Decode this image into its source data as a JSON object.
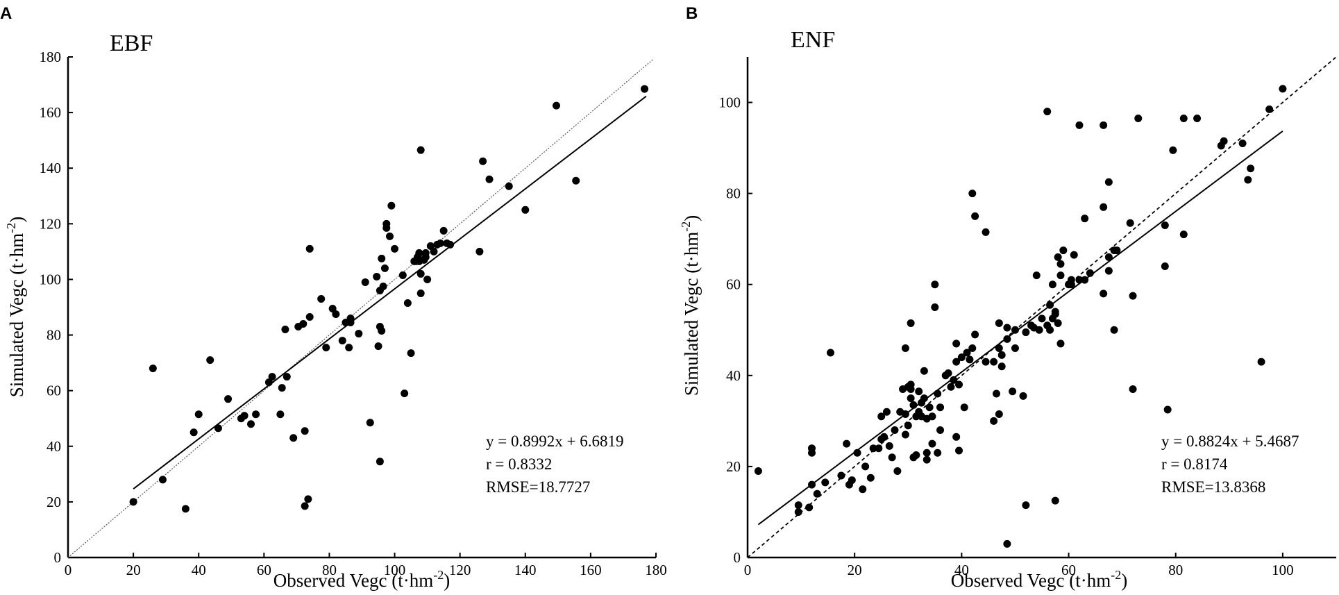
{
  "chart_data": [
    {
      "type": "scatter",
      "panel_label": "A",
      "title": "EBF",
      "xlabel": "Observed Vegc (t·hm",
      "ylabel": "Simulated Vegc (t·hm",
      "unit_exponent": "-2",
      "unit_close": ")",
      "xlim": [
        0,
        180
      ],
      "ylim": [
        0,
        180
      ],
      "xticks": [
        0,
        20,
        40,
        60,
        80,
        100,
        120,
        140,
        160,
        180
      ],
      "yticks": [
        0,
        20,
        40,
        60,
        80,
        100,
        120,
        140,
        160,
        180
      ],
      "equation": "y = 0.8992x + 6.6819",
      "r_text": "r = 0.8332",
      "rmse_text": "RMSE=18.7727",
      "fit": {
        "slope": 0.8992,
        "intercept": 6.6819,
        "x_range": [
          20,
          177
        ]
      },
      "one_to_one": {
        "x_range": [
          0,
          179
        ]
      },
      "points": [
        [
          20,
          20
        ],
        [
          26,
          68
        ],
        [
          29,
          28
        ],
        [
          36,
          17.5
        ],
        [
          38.5,
          45
        ],
        [
          40,
          51.5
        ],
        [
          43.5,
          71
        ],
        [
          46,
          46.5
        ],
        [
          49,
          57
        ],
        [
          53,
          50
        ],
        [
          54,
          51
        ],
        [
          56,
          48
        ],
        [
          57.5,
          51.5
        ],
        [
          61.5,
          63
        ],
        [
          62.5,
          65
        ],
        [
          65,
          51.5
        ],
        [
          65.5,
          61
        ],
        [
          66.5,
          82
        ],
        [
          67,
          65
        ],
        [
          69,
          43
        ],
        [
          70.5,
          83
        ],
        [
          72,
          84
        ],
        [
          72.5,
          18.5
        ],
        [
          72.5,
          45.5
        ],
        [
          73.5,
          21
        ],
        [
          74,
          86.5
        ],
        [
          74,
          111
        ],
        [
          77.5,
          93
        ],
        [
          79,
          75.5
        ],
        [
          81,
          89.5
        ],
        [
          82,
          87.5
        ],
        [
          84,
          78
        ],
        [
          85,
          84.5
        ],
        [
          86,
          75.5
        ],
        [
          86.5,
          84.5
        ],
        [
          86.5,
          86
        ],
        [
          89,
          80.5
        ],
        [
          91,
          99
        ],
        [
          92.5,
          48.5
        ],
        [
          94.5,
          101
        ],
        [
          95,
          76
        ],
        [
          95.5,
          34.5
        ],
        [
          95.5,
          83
        ],
        [
          95.5,
          96
        ],
        [
          96,
          107.5
        ],
        [
          96,
          81.5
        ],
        [
          96.5,
          97.5
        ],
        [
          97,
          104
        ],
        [
          97.5,
          120
        ],
        [
          97.5,
          118.5
        ],
        [
          98.5,
          115.5
        ],
        [
          99,
          126.5
        ],
        [
          100,
          111
        ],
        [
          102.5,
          101.5
        ],
        [
          103,
          59
        ],
        [
          104,
          91.5
        ],
        [
          105,
          73.5
        ],
        [
          106,
          106.5
        ],
        [
          106.5,
          106.5
        ],
        [
          107,
          108
        ],
        [
          107.5,
          109.5
        ],
        [
          107.5,
          106.5
        ],
        [
          108,
          102
        ],
        [
          108,
          95
        ],
        [
          108,
          146.5
        ],
        [
          109,
          107
        ],
        [
          109.5,
          109.5
        ],
        [
          109.5,
          108
        ],
        [
          110,
          100
        ],
        [
          111,
          112
        ],
        [
          112,
          110
        ],
        [
          113,
          112.5
        ],
        [
          114,
          113
        ],
        [
          115,
          117.5
        ],
        [
          116,
          113
        ],
        [
          117,
          112.5
        ],
        [
          126,
          110
        ],
        [
          127,
          142.5
        ],
        [
          129,
          136
        ],
        [
          135,
          133.5
        ],
        [
          140,
          125
        ],
        [
          149.5,
          162.5
        ],
        [
          155.5,
          135.5
        ],
        [
          176.5,
          168.5
        ]
      ]
    },
    {
      "type": "scatter",
      "panel_label": "B",
      "title": "ENF",
      "xlabel": "Observed Vegc (t·hm",
      "ylabel": "Simulated Vegc (t·hm",
      "unit_exponent": "-2",
      "unit_close": ")",
      "xlim": [
        0,
        110
      ],
      "ylim": [
        0,
        110
      ],
      "xticks": [
        0,
        20,
        40,
        60,
        80,
        100
      ],
      "yticks": [
        0,
        20,
        40,
        60,
        80,
        100
      ],
      "equation": "y = 0.8824x + 5.4687",
      "r_text": "r = 0.8174",
      "rmse_text": "RMSE=13.8368",
      "fit": {
        "slope": 0.8824,
        "intercept": 5.4687,
        "x_range": [
          2,
          100
        ]
      },
      "one_to_one": {
        "x_range": [
          0,
          110
        ]
      },
      "points": [
        [
          2,
          19
        ],
        [
          9.5,
          11.5
        ],
        [
          9.5,
          10
        ],
        [
          11.5,
          11
        ],
        [
          12,
          16
        ],
        [
          12,
          24
        ],
        [
          12,
          23
        ],
        [
          13,
          14
        ],
        [
          14.5,
          16.5
        ],
        [
          15.5,
          45
        ],
        [
          17.5,
          18
        ],
        [
          18.5,
          25
        ],
        [
          19,
          16
        ],
        [
          19.5,
          17
        ],
        [
          20.5,
          23
        ],
        [
          21.5,
          15
        ],
        [
          22,
          20
        ],
        [
          23,
          17.5
        ],
        [
          23.5,
          24
        ],
        [
          24.5,
          24
        ],
        [
          25,
          26
        ],
        [
          25,
          31
        ],
        [
          25.5,
          26.5
        ],
        [
          26,
          32
        ],
        [
          26.5,
          24.5
        ],
        [
          27,
          22
        ],
        [
          27.5,
          28
        ],
        [
          28,
          19
        ],
        [
          28.5,
          32
        ],
        [
          29,
          37
        ],
        [
          29.5,
          46
        ],
        [
          29.5,
          31.5
        ],
        [
          29.5,
          27
        ],
        [
          30,
          37.5
        ],
        [
          30,
          29
        ],
        [
          30.5,
          51.5
        ],
        [
          30.5,
          38
        ],
        [
          30.5,
          37
        ],
        [
          30.5,
          35
        ],
        [
          31,
          33.5
        ],
        [
          31,
          22
        ],
        [
          31.5,
          22.5
        ],
        [
          31.5,
          31
        ],
        [
          32,
          32
        ],
        [
          32,
          36.5
        ],
        [
          32.5,
          31
        ],
        [
          32.5,
          34
        ],
        [
          33,
          41
        ],
        [
          33,
          35
        ],
        [
          33.5,
          21.5
        ],
        [
          33.5,
          23
        ],
        [
          33.5,
          30.5
        ],
        [
          34,
          33
        ],
        [
          34.5,
          31
        ],
        [
          34.5,
          25
        ],
        [
          35,
          60
        ],
        [
          35,
          55
        ],
        [
          35.5,
          23
        ],
        [
          35.5,
          36
        ],
        [
          36,
          28
        ],
        [
          36,
          33
        ],
        [
          37,
          40
        ],
        [
          37.5,
          40.5
        ],
        [
          38,
          37.5
        ],
        [
          38.5,
          39
        ],
        [
          39,
          47
        ],
        [
          39,
          43
        ],
        [
          39,
          26.5
        ],
        [
          39.5,
          23.5
        ],
        [
          39.5,
          38
        ],
        [
          40,
          44
        ],
        [
          40.5,
          33
        ],
        [
          41,
          45
        ],
        [
          41.5,
          43.5
        ],
        [
          42,
          80
        ],
        [
          42,
          46
        ],
        [
          42.5,
          75
        ],
        [
          42.5,
          49
        ],
        [
          44.5,
          71.5
        ],
        [
          44.5,
          43
        ],
        [
          46,
          43
        ],
        [
          46,
          30
        ],
        [
          46.5,
          36
        ],
        [
          47,
          51.5
        ],
        [
          47,
          46
        ],
        [
          47,
          31.5
        ],
        [
          47.5,
          44.5
        ],
        [
          47.5,
          42
        ],
        [
          48.5,
          3
        ],
        [
          48.5,
          50.5
        ],
        [
          48.5,
          48
        ],
        [
          49.5,
          36.5
        ],
        [
          50,
          46
        ],
        [
          50,
          50
        ],
        [
          51.5,
          35.5
        ],
        [
          52,
          11.5
        ],
        [
          52,
          49.5
        ],
        [
          53,
          51
        ],
        [
          53.5,
          50.5
        ],
        [
          54,
          62
        ],
        [
          54.5,
          50
        ],
        [
          55,
          52.5
        ],
        [
          56,
          98
        ],
        [
          56,
          51
        ],
        [
          56.5,
          50
        ],
        [
          56.5,
          55.5
        ],
        [
          57,
          52.5
        ],
        [
          57,
          60
        ],
        [
          57.5,
          54
        ],
        [
          57.5,
          53.5
        ],
        [
          57.5,
          12.5
        ],
        [
          58,
          66
        ],
        [
          58,
          51.5
        ],
        [
          58.5,
          64.5
        ],
        [
          58.5,
          62
        ],
        [
          58.5,
          47
        ],
        [
          59,
          67.5
        ],
        [
          60,
          60
        ],
        [
          60.5,
          61
        ],
        [
          60.5,
          60
        ],
        [
          61,
          66.5
        ],
        [
          62,
          95
        ],
        [
          62,
          61
        ],
        [
          63,
          74.5
        ],
        [
          63,
          61
        ],
        [
          64,
          62.5
        ],
        [
          66.5,
          95
        ],
        [
          66.5,
          77
        ],
        [
          66.5,
          58
        ],
        [
          67.5,
          63
        ],
        [
          67.5,
          66
        ],
        [
          67.5,
          82.5
        ],
        [
          68.5,
          67.5
        ],
        [
          68.5,
          50
        ],
        [
          69,
          67.5
        ],
        [
          71.5,
          73.5
        ],
        [
          72,
          57.5
        ],
        [
          72,
          37
        ],
        [
          73,
          96.5
        ],
        [
          78,
          64
        ],
        [
          78,
          73
        ],
        [
          78.5,
          32.5
        ],
        [
          79.5,
          89.5
        ],
        [
          81.5,
          96.5
        ],
        [
          81.5,
          71
        ],
        [
          84,
          96.5
        ],
        [
          88.5,
          90.5
        ],
        [
          89,
          91.5
        ],
        [
          92.5,
          91
        ],
        [
          93.5,
          83
        ],
        [
          94,
          85.5
        ],
        [
          96,
          43
        ],
        [
          97.5,
          98.5
        ],
        [
          100,
          103
        ]
      ]
    }
  ]
}
